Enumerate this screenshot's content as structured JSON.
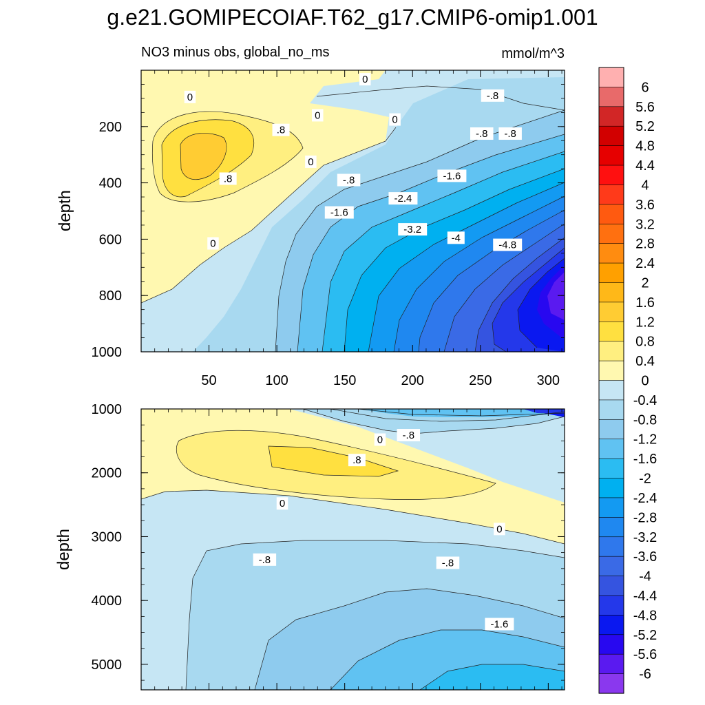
{
  "chart_data": {
    "type": "contour",
    "title": "g.e21.GOMIPECOIAF.T62_g17.CMIP6-omip1.001",
    "subtitle_left": "NO3 minus obs, global_no_ms",
    "units": "mmol/m^3",
    "colorbar": {
      "labels": [
        "6",
        "5.6",
        "5.2",
        "4.8",
        "4.4",
        "4",
        "3.6",
        "3.2",
        "2.8",
        "2.4",
        "2",
        "1.6",
        "1.2",
        "0.8",
        "0.4",
        "0",
        "-0.4",
        "-0.8",
        "-1.2",
        "-1.6",
        "-2",
        "-2.4",
        "-2.8",
        "-3.2",
        "-3.6",
        "-4",
        "-4.4",
        "-4.8",
        "-5.2",
        "-5.6",
        "-6"
      ],
      "colors": [
        "#ffb0b0",
        "#e86a6a",
        "#d22626",
        "#d20000",
        "#e60000",
        "#ff1010",
        "#ff3a1a",
        "#ff5a10",
        "#ff7010",
        "#ff8c10",
        "#ffa000",
        "#ffb818",
        "#ffcc33",
        "#ffe040",
        "#ffef80",
        "#fff8b0",
        "#c6e6f4",
        "#a8d9f0",
        "#8ecbee",
        "#60c2f2",
        "#2bbcf2",
        "#00b0f0",
        "#139af2",
        "#1f88f0",
        "#2f78ec",
        "#3a6ae6",
        "#3554e0",
        "#2438ea",
        "#0a18f0",
        "#2808f0",
        "#5a1af0",
        "#8a38ee"
      ]
    },
    "panels": [
      {
        "name": "upper",
        "ylabel": "depth",
        "ylim": [
          0,
          1000
        ],
        "xlim": [
          0,
          312
        ],
        "yticks": [
          200,
          400,
          600,
          800,
          1000
        ],
        "xticks": [
          50,
          100,
          150,
          200,
          250,
          300
        ],
        "contour_labels": [
          {
            "text": "0",
            "x": 36,
            "y": 95
          },
          {
            "text": "0",
            "x": 165,
            "y": 32
          },
          {
            "text": "0",
            "x": 130,
            "y": 160
          },
          {
            "text": "0",
            "x": 187,
            "y": 175
          },
          {
            "text": "0",
            "x": 125,
            "y": 325
          },
          {
            "text": "0",
            "x": 53,
            "y": 615
          },
          {
            "text": ".8",
            "x": 103,
            "y": 212
          },
          {
            "text": ".8",
            "x": 64,
            "y": 385
          },
          {
            "text": "-.8",
            "x": 259,
            "y": 90
          },
          {
            "text": "-.8",
            "x": 251,
            "y": 225
          },
          {
            "text": "-.8",
            "x": 272,
            "y": 225
          },
          {
            "text": "-.8",
            "x": 153,
            "y": 390
          },
          {
            "text": "-1.6",
            "x": 229,
            "y": 375
          },
          {
            "text": "-1.6",
            "x": 146,
            "y": 505
          },
          {
            "text": "-2.4",
            "x": 193,
            "y": 455
          },
          {
            "text": "-3.2",
            "x": 200,
            "y": 565
          },
          {
            "text": "-4",
            "x": 232,
            "y": 595
          },
          {
            "text": "-4.8",
            "x": 270,
            "y": 620
          }
        ]
      },
      {
        "name": "lower",
        "ylabel": "depth",
        "ylim": [
          1000,
          5400
        ],
        "xlim": [
          0,
          312
        ],
        "yticks": [
          1000,
          2000,
          3000,
          4000,
          5000
        ],
        "contour_labels": [
          {
            "text": "0",
            "x": 176,
            "y": 1480
          },
          {
            "text": "0",
            "x": 104,
            "y": 2480
          },
          {
            "text": "0",
            "x": 264,
            "y": 2880
          },
          {
            "text": ".8",
            "x": 159,
            "y": 1800
          },
          {
            "text": "-.8",
            "x": 197,
            "y": 1410
          },
          {
            "text": "-.8",
            "x": 91,
            "y": 3360
          },
          {
            "text": "-.8",
            "x": 226,
            "y": 3410
          },
          {
            "text": "-1.6",
            "x": 264,
            "y": 4370
          }
        ]
      }
    ]
  }
}
